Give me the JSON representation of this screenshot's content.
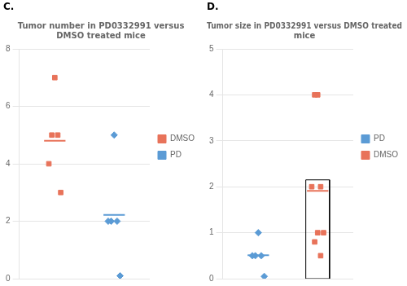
{
  "chart_data": [
    {
      "type": "scatter",
      "title": "Tumor number in PD0332991 versus\nDMSO treated mice",
      "annotations": [
        "C."
      ],
      "series": [
        {
          "name": "DMSO",
          "color": "#E8735A",
          "marker": "square",
          "values": [
            7,
            5,
            5,
            4,
            3
          ],
          "mean": 4.8
        },
        {
          "name": "PD",
          "color": "#5B9BD5",
          "marker": "diamond",
          "values": [
            5,
            2,
            2,
            2,
            0.1
          ],
          "mean": 2.22
        }
      ],
      "ylim": [
        0,
        8
      ],
      "yticks": [
        0,
        2,
        4,
        6,
        8
      ],
      "grid": true,
      "legend": "right",
      "tick_labels": "y"
    },
    {
      "type": "scatter",
      "title": "Tumor size in PD0332991 versus DMSO treated\nmice",
      "annotations": [
        "D."
      ],
      "series": [
        {
          "name": "PD",
          "color": "#5B9BD5",
          "marker": "diamond",
          "values": [
            1,
            0.5,
            0.5,
            0.5,
            0.05
          ],
          "mean": 0.51
        },
        {
          "name": "DMSO",
          "color": "#E8735A",
          "marker": "square",
          "values": [
            4,
            4,
            2,
            2,
            1,
            1,
            0.8,
            0.5
          ],
          "mean": 1.9125,
          "box": [
            0,
            2.15
          ]
        }
      ],
      "ylim": [
        0,
        5
      ],
      "yticks": [
        0,
        1,
        2,
        3,
        4,
        5
      ],
      "grid": true,
      "legend": "right",
      "tick_labels": "y"
    }
  ]
}
